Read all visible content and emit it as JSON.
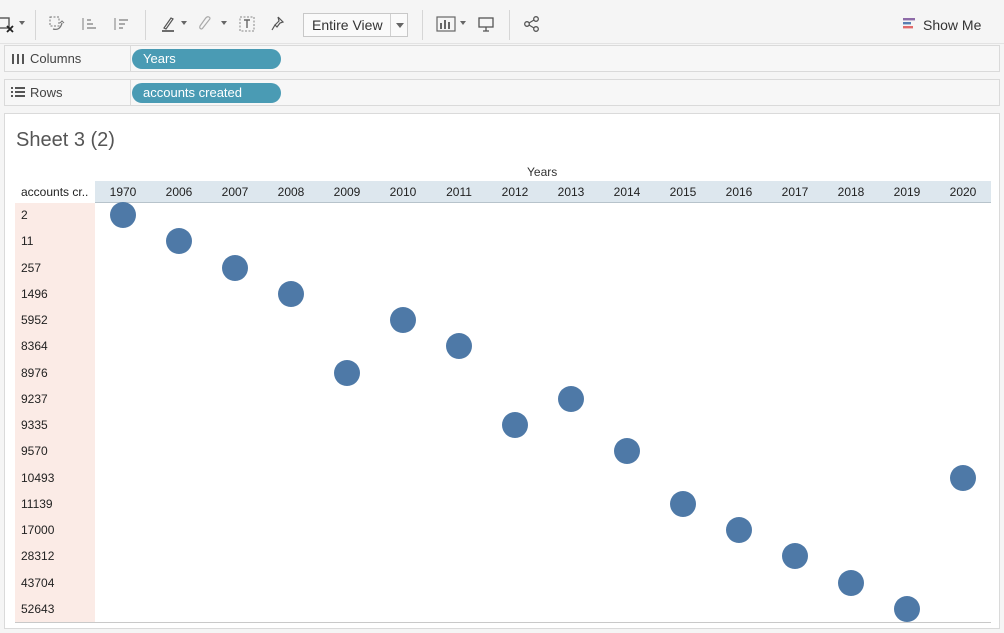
{
  "toolbar": {
    "view_mode": "Entire View",
    "show_me_label": "Show Me",
    "icons": [
      "clear-sheet-icon",
      "swap-axes-icon",
      "sort-ascending-icon",
      "sort-descending-icon",
      "highlight-icon",
      "group-icon",
      "show-labels-icon",
      "pin-icon",
      "fit-icon",
      "presentation-icon",
      "share-icon",
      "show-me-icon"
    ]
  },
  "shelves": {
    "columns": {
      "label": "Columns",
      "pill": "Years"
    },
    "rows": {
      "label": "Rows",
      "pill": "accounts created"
    }
  },
  "sheet": {
    "title": "Sheet 3 (2)",
    "column_header": "Years",
    "row_header": "accounts cr..",
    "colors": {
      "mark": "#4e79a7",
      "pill": "#4a9bb4",
      "header_band": "#dde7ee",
      "row_band": "#fbebe6"
    }
  },
  "chart_data": {
    "type": "scatter",
    "x_label": "Years",
    "y_label": "accounts created",
    "x_categories": [
      "1970",
      "2006",
      "2007",
      "2008",
      "2009",
      "2010",
      "2011",
      "2012",
      "2013",
      "2014",
      "2015",
      "2016",
      "2017",
      "2018",
      "2019",
      "2020"
    ],
    "y_categories": [
      "2",
      "11",
      "257",
      "1496",
      "5952",
      "8364",
      "8976",
      "9237",
      "9335",
      "9570",
      "10493",
      "11139",
      "17000",
      "28312",
      "43704",
      "52643"
    ],
    "points": [
      {
        "x": "1970",
        "y": "2"
      },
      {
        "x": "2006",
        "y": "11"
      },
      {
        "x": "2007",
        "y": "257"
      },
      {
        "x": "2008",
        "y": "1496"
      },
      {
        "x": "2009",
        "y": "8976"
      },
      {
        "x": "2010",
        "y": "5952"
      },
      {
        "x": "2011",
        "y": "8364"
      },
      {
        "x": "2012",
        "y": "9335"
      },
      {
        "x": "2013",
        "y": "9237"
      },
      {
        "x": "2014",
        "y": "9570"
      },
      {
        "x": "2015",
        "y": "11139"
      },
      {
        "x": "2016",
        "y": "17000"
      },
      {
        "x": "2017",
        "y": "28312"
      },
      {
        "x": "2018",
        "y": "43704"
      },
      {
        "x": "2019",
        "y": "52643"
      },
      {
        "x": "2020",
        "y": "10493"
      }
    ]
  }
}
